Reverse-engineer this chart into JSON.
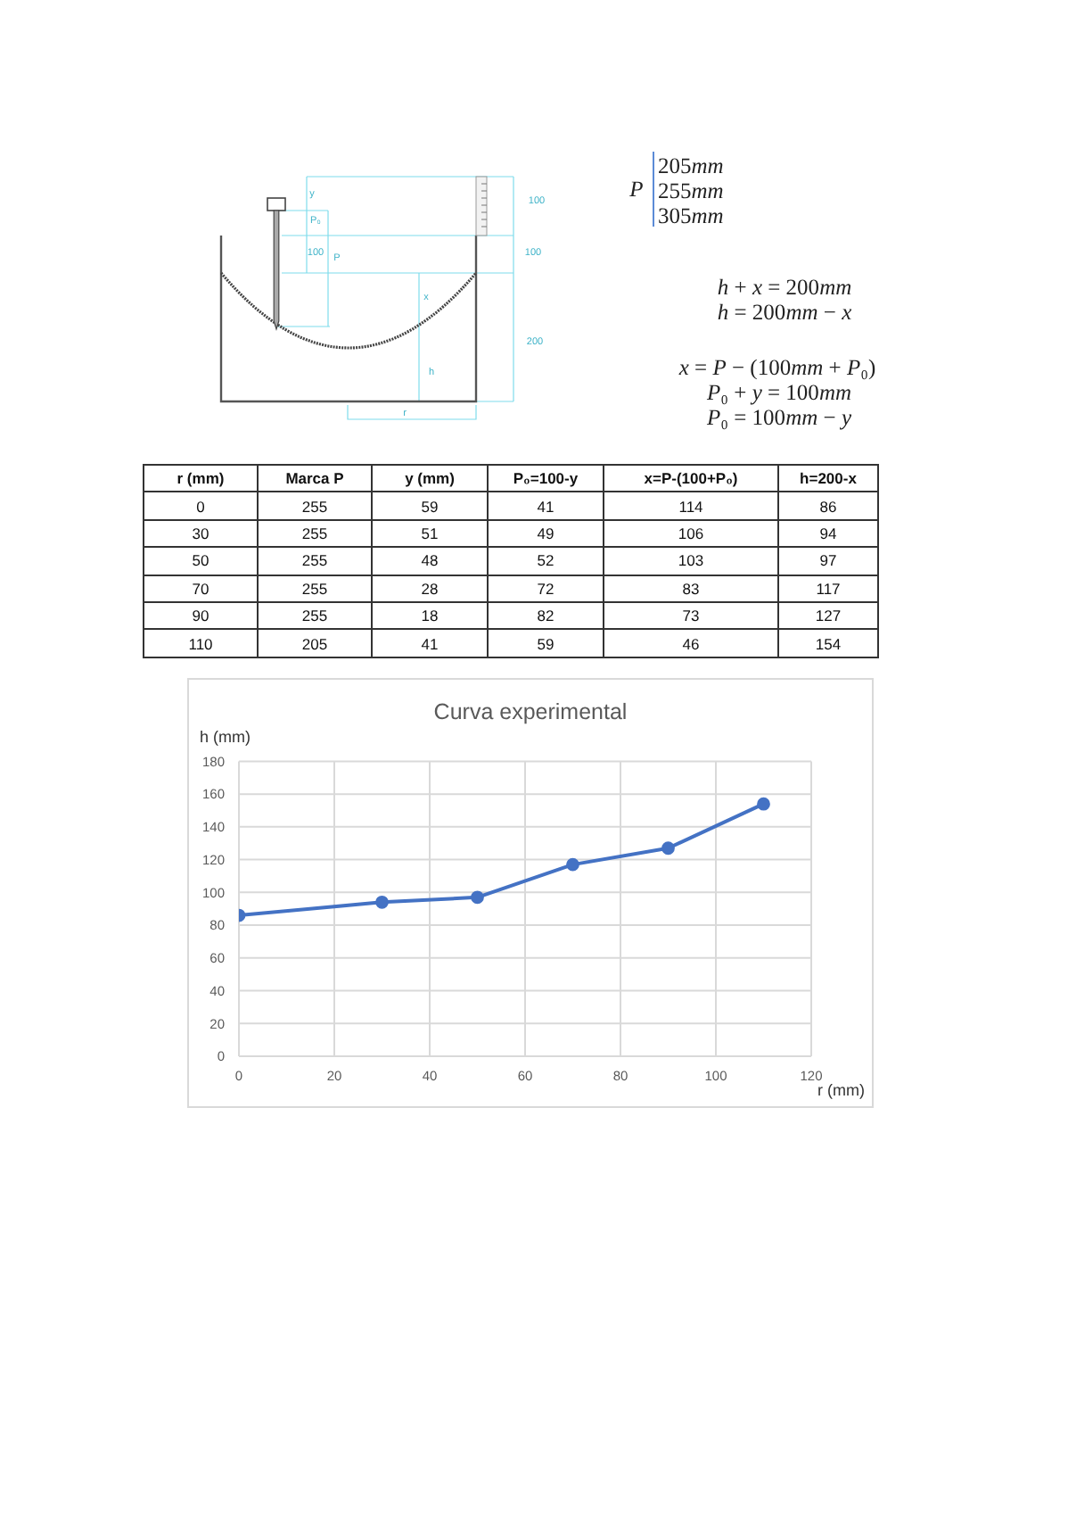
{
  "chart_data": [
    {
      "type": "other",
      "annotations": [
        "y",
        "P₀",
        "100",
        "P",
        "x",
        "h",
        "r",
        "100",
        "100",
        "200"
      ]
    },
    {
      "type": "other",
      "annotations": [
        "P",
        "205mm",
        "255mm",
        "305mm",
        "h + x = 200mm",
        "h = 200mm − x",
        "x = P − (100mm + P₀)",
        "P₀ + y = 100mm",
        "P₀ = 100mm − y"
      ]
    },
    {
      "type": "other",
      "categories": [
        "r (mm)",
        "Marca P",
        "y (mm)",
        "P₀=100-y",
        "x=P-(100+P₀)",
        "h=200-x"
      ],
      "cell_labels": [
        [
          "0",
          "255",
          "59",
          "41",
          "114",
          "86"
        ],
        [
          "30",
          "255",
          "51",
          "49",
          "106",
          "94"
        ],
        [
          "50",
          "255",
          "48",
          "52",
          "103",
          "97"
        ],
        [
          "70",
          "255",
          "28",
          "72",
          "83",
          "117"
        ],
        [
          "90",
          "255",
          "18",
          "82",
          "73",
          "127"
        ],
        [
          "110",
          "205",
          "41",
          "59",
          "46",
          "154"
        ]
      ]
    },
    {
      "type": "line",
      "title": "Curva experimental",
      "xlabel": "r (mm)",
      "ylabel": "h (mm)",
      "x": [
        0,
        30,
        50,
        70,
        90,
        110
      ],
      "series": [
        {
          "color": "#4472c4",
          "values": [
            86,
            94,
            97,
            117,
            127,
            154
          ]
        }
      ],
      "xlim": [
        0,
        120
      ],
      "xticks": [
        0,
        20,
        40,
        60,
        80,
        100,
        120
      ],
      "ylim": [
        0,
        180
      ],
      "yticks": [
        0,
        20,
        40,
        60,
        80,
        100,
        120,
        140,
        160,
        180
      ],
      "grid": true,
      "marker": "circle",
      "line_style": "solid"
    }
  ]
}
